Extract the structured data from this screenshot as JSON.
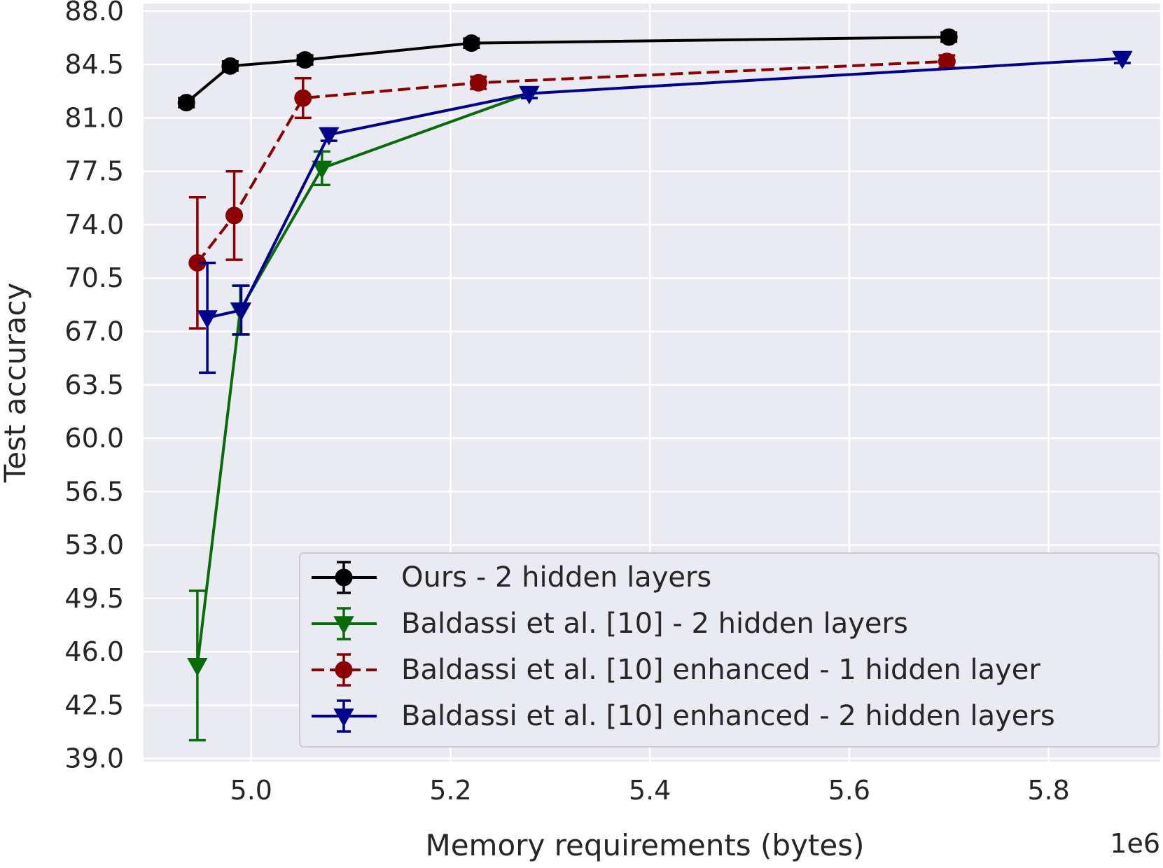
{
  "chart_data": {
    "type": "line",
    "xlabel": "Memory requirements (bytes)",
    "ylabel": "Test accuracy",
    "x_offset_text": "1e6",
    "xlim": [
      4.892,
      5.912
    ],
    "ylim": [
      38.8,
      88.5
    ],
    "x_ticks": [
      5.0,
      5.2,
      5.4,
      5.6,
      5.8
    ],
    "x_tick_labels": [
      "5.0",
      "5.2",
      "5.4",
      "5.6",
      "5.8"
    ],
    "y_ticks": [
      39.0,
      42.5,
      46.0,
      49.5,
      53.0,
      56.5,
      60.0,
      63.5,
      67.0,
      70.5,
      74.0,
      77.5,
      81.0,
      84.5,
      88.0
    ],
    "y_tick_labels": [
      "39.0",
      "42.5",
      "46.0",
      "49.5",
      "53.0",
      "56.5",
      "60.0",
      "63.5",
      "67.0",
      "70.5",
      "74.0",
      "77.5",
      "81.0",
      "84.5",
      "88.0"
    ],
    "grid": true,
    "background": "#eaeaf2",
    "legend_position": "lower-right",
    "series": [
      {
        "name": "Ours - 2 hidden layers",
        "color": "#000000",
        "marker": "circle",
        "dashed": false,
        "x": [
          4.935,
          4.979,
          5.054,
          5.221,
          5.7
        ],
        "y": [
          82.0,
          84.4,
          84.8,
          85.9,
          86.3
        ],
        "err": [
          0.3,
          0.3,
          0.3,
          0.3,
          0.3
        ]
      },
      {
        "name": "Baldassi et al. [10] - 2 hidden layers",
        "color": "#0a6b0a",
        "marker": "triangle-down",
        "dashed": false,
        "x": [
          4.946,
          4.989,
          5.071,
          5.279
        ],
        "y": [
          45.1,
          68.4,
          77.7,
          82.6
        ],
        "err": [
          4.9,
          1.6,
          1.1,
          0.3
        ]
      },
      {
        "name": "Baldassi et al. [10] enhanced - 1 hidden layer",
        "color": "#8b0000",
        "marker": "circle",
        "dashed": true,
        "x": [
          4.946,
          4.983,
          5.052,
          5.228,
          5.698
        ],
        "y": [
          71.5,
          74.6,
          82.3,
          83.3,
          84.7
        ],
        "err": [
          4.3,
          2.9,
          1.3,
          0.4,
          0.4
        ]
      },
      {
        "name": "Baldassi et al. [10] enhanced - 2 hidden layers",
        "color": "#00008b",
        "marker": "triangle-down",
        "dashed": false,
        "x": [
          4.956,
          4.99,
          5.078,
          5.279,
          5.874
        ],
        "y": [
          67.9,
          68.4,
          79.9,
          82.6,
          84.9
        ],
        "err": [
          3.6,
          1.6,
          0.4,
          0.3,
          0.3
        ]
      }
    ]
  }
}
